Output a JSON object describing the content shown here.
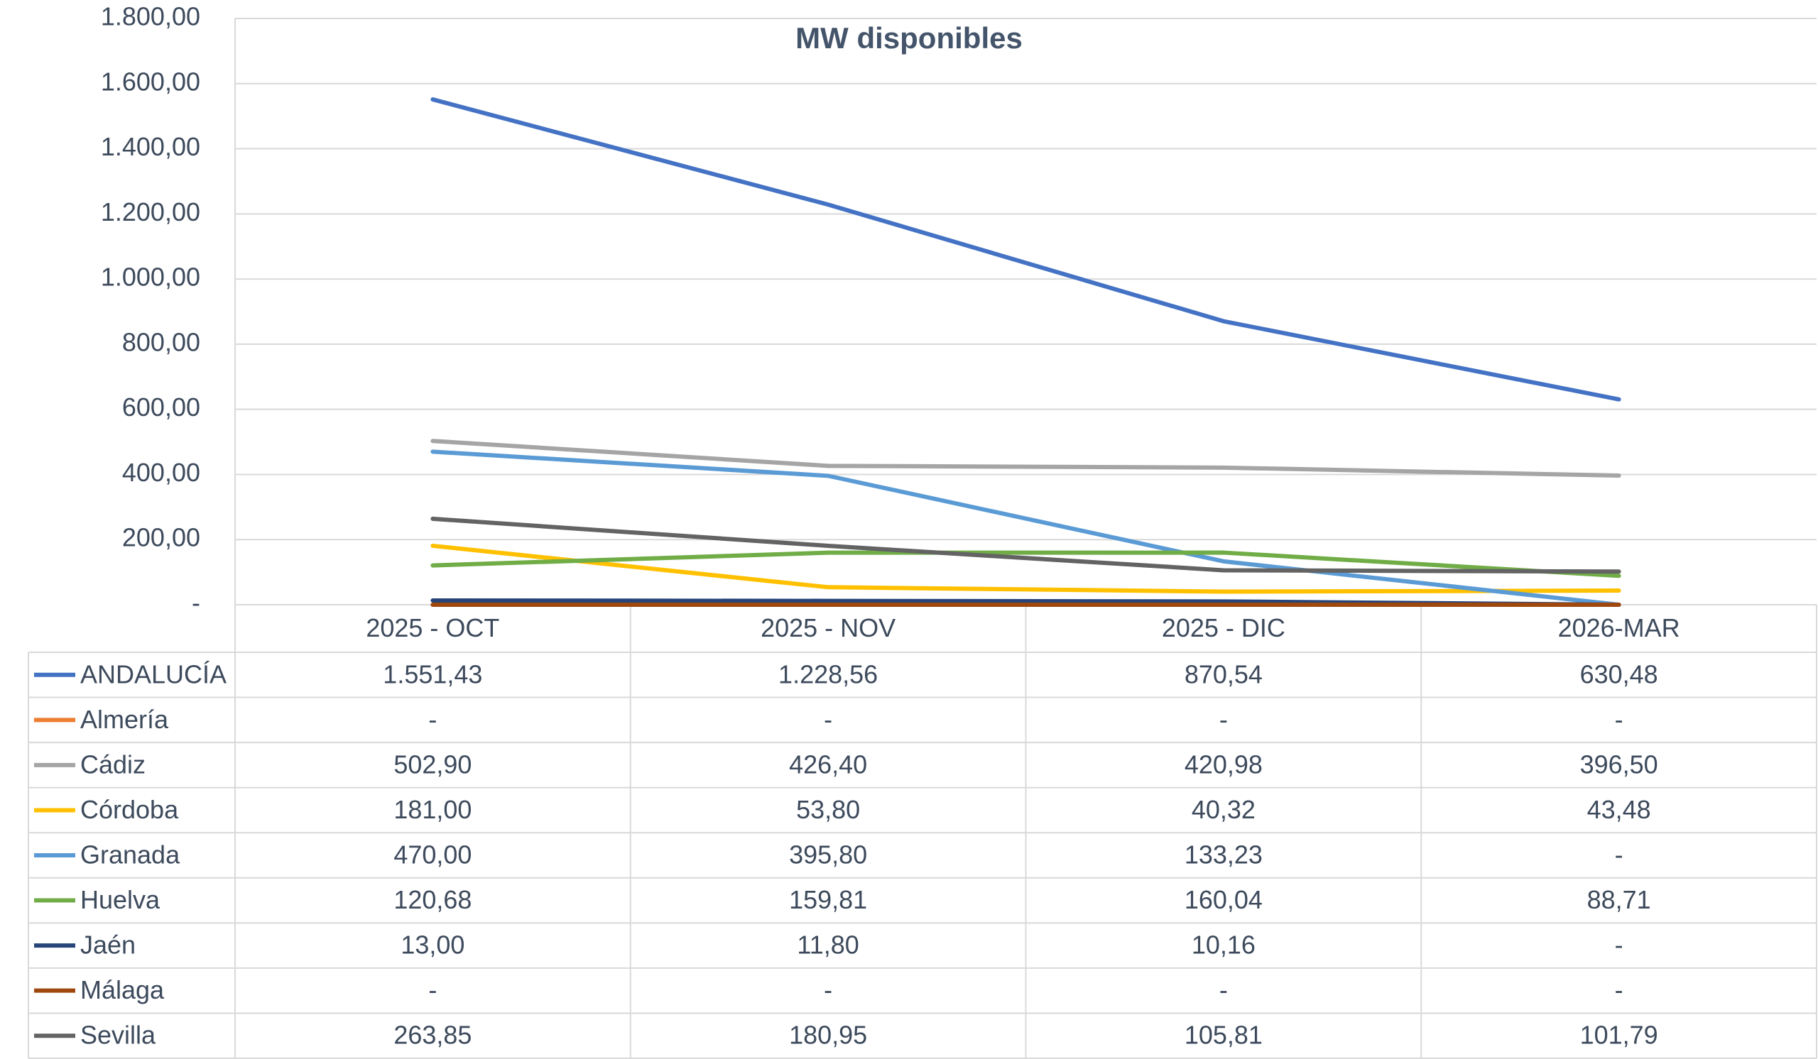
{
  "chart_data": {
    "type": "line",
    "title": "MW disponibles",
    "categories": [
      "2025 - OCT",
      "2025 - NOV",
      "2025 - DIC",
      "2026-MAR"
    ],
    "ylim": [
      0,
      1800
    ],
    "yticks": [
      {
        "value": 0,
        "label": "-"
      },
      {
        "value": 200,
        "label": "200,00"
      },
      {
        "value": 400,
        "label": "400,00"
      },
      {
        "value": 600,
        "label": "600,00"
      },
      {
        "value": 800,
        "label": "800,00"
      },
      {
        "value": 1000,
        "label": "1.000,00"
      },
      {
        "value": 1200,
        "label": "1.200,00"
      },
      {
        "value": 1400,
        "label": "1.400,00"
      },
      {
        "value": 1600,
        "label": "1.600,00"
      },
      {
        "value": 1800,
        "label": "1.800,00"
      }
    ],
    "grid": true,
    "series": [
      {
        "name": "ANDALUCÍA",
        "color": "#4472c4",
        "values": [
          1551.43,
          1228.56,
          870.54,
          630.48
        ],
        "value_labels": [
          "1.551,43",
          "1.228,56",
          "870,54",
          "630,48"
        ]
      },
      {
        "name": "Almería",
        "color": "#ed7d31",
        "values": [
          0,
          0,
          0,
          0
        ],
        "value_labels": [
          "-",
          "-",
          "-",
          "-"
        ]
      },
      {
        "name": "Cádiz",
        "color": "#a5a5a5",
        "values": [
          502.9,
          426.4,
          420.98,
          396.5
        ],
        "value_labels": [
          "502,90",
          "426,40",
          "420,98",
          "396,50"
        ]
      },
      {
        "name": "Córdoba",
        "color": "#ffc000",
        "values": [
          181,
          53.8,
          40.32,
          43.48
        ],
        "value_labels": [
          "181,00",
          "53,80",
          "40,32",
          "43,48"
        ]
      },
      {
        "name": "Granada",
        "color": "#5b9bd5",
        "values": [
          470,
          395.8,
          133.23,
          0
        ],
        "value_labels": [
          "470,00",
          "395,80",
          "133,23",
          "-"
        ]
      },
      {
        "name": "Huelva",
        "color": "#70ad47",
        "values": [
          120.68,
          159.81,
          160.04,
          88.71
        ],
        "value_labels": [
          "120,68",
          "159,81",
          "160,04",
          "88,71"
        ]
      },
      {
        "name": "Jaén",
        "color": "#264478",
        "values": [
          13,
          11.8,
          10.16,
          0
        ],
        "value_labels": [
          "13,00",
          "11,80",
          "10,16",
          "-"
        ]
      },
      {
        "name": "Málaga",
        "color": "#9e480e",
        "values": [
          0,
          0,
          0,
          0
        ],
        "value_labels": [
          "-",
          "-",
          "-",
          "-"
        ]
      },
      {
        "name": "Sevilla",
        "color": "#636363",
        "values": [
          263.85,
          180.95,
          105.81,
          101.79
        ],
        "value_labels": [
          "263,85",
          "180,95",
          "105,81",
          "101,79"
        ]
      }
    ]
  }
}
